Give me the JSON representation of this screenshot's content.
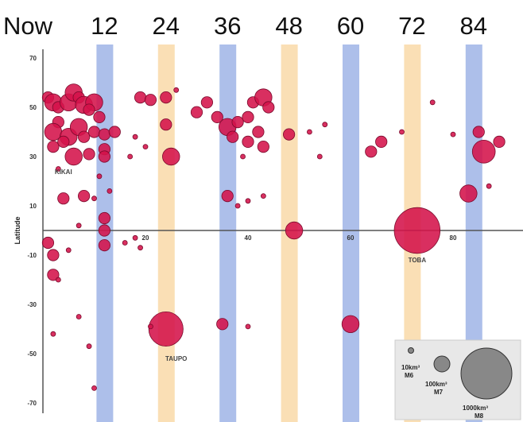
{
  "chart_data": {
    "type": "scatter",
    "title": "",
    "ylabel": "Latitude",
    "xlabel": "",
    "ylim": [
      -70,
      70
    ],
    "y_ticks": [
      "70",
      "50",
      "30",
      "10",
      "-10",
      "-30",
      "-50",
      "-70"
    ],
    "y_tick_values": [
      70,
      50,
      30,
      10,
      -10,
      -30,
      -50,
      -70
    ],
    "x_ticks": [
      "20",
      "40",
      "60",
      "80"
    ],
    "x_tick_values": [
      20,
      40,
      60,
      80
    ],
    "top_labels": [
      "Now",
      "12",
      "24",
      "36",
      "48",
      "60",
      "72",
      "84"
    ],
    "top_label_values": [
      0,
      12,
      24,
      36,
      48,
      60,
      72,
      84
    ],
    "bands": [
      {
        "x": 12,
        "color": "#9fb4e6"
      },
      {
        "x": 24,
        "color": "#f9d9a8"
      },
      {
        "x": 36,
        "color": "#9fb4e6"
      },
      {
        "x": 48,
        "color": "#f9d9a8"
      },
      {
        "x": 60,
        "color": "#9fb4e6"
      },
      {
        "x": 72,
        "color": "#f9d9a8"
      },
      {
        "x": 84,
        "color": "#9fb4e6"
      }
    ],
    "marker_color": "#d4124a",
    "labeled_eruptions": [
      {
        "name": "KIKAI",
        "x": 4,
        "y": 30
      },
      {
        "name": "TAUPO",
        "x": 26,
        "y": -40
      },
      {
        "name": "TOBA",
        "x": 73,
        "y": 0
      }
    ],
    "eruptions": [
      {
        "x": 1,
        "y": 54,
        "size": 2
      },
      {
        "x": 2,
        "y": 52,
        "size": 3
      },
      {
        "x": 3,
        "y": 50,
        "size": 2
      },
      {
        "x": 5,
        "y": 52,
        "size": 3
      },
      {
        "x": 6,
        "y": 56,
        "size": 3
      },
      {
        "x": 7,
        "y": 54,
        "size": 2
      },
      {
        "x": 8,
        "y": 51,
        "size": 3
      },
      {
        "x": 10,
        "y": 52,
        "size": 3
      },
      {
        "x": 9,
        "y": 49,
        "size": 2
      },
      {
        "x": 11,
        "y": 46,
        "size": 2
      },
      {
        "x": 3,
        "y": 44,
        "size": 2
      },
      {
        "x": 2,
        "y": 40,
        "size": 3
      },
      {
        "x": 5,
        "y": 38,
        "size": 3
      },
      {
        "x": 7,
        "y": 42,
        "size": 3
      },
      {
        "x": 8,
        "y": 38,
        "size": 2
      },
      {
        "x": 10,
        "y": 40,
        "size": 2
      },
      {
        "x": 12,
        "y": 39,
        "size": 2
      },
      {
        "x": 14,
        "y": 40,
        "size": 2
      },
      {
        "x": 2,
        "y": 34,
        "size": 2
      },
      {
        "x": 4,
        "y": 36,
        "size": 2
      },
      {
        "x": 6,
        "y": 30,
        "size": 3
      },
      {
        "x": 9,
        "y": 31,
        "size": 2
      },
      {
        "x": 12,
        "y": 33,
        "size": 2
      },
      {
        "x": 12,
        "y": 30,
        "size": 2
      },
      {
        "x": 3,
        "y": 25,
        "size": 1
      },
      {
        "x": 11,
        "y": 22,
        "size": 1
      },
      {
        "x": 8,
        "y": 14,
        "size": 2
      },
      {
        "x": 4,
        "y": 13,
        "size": 2
      },
      {
        "x": 10,
        "y": 13,
        "size": 1
      },
      {
        "x": 13,
        "y": 16,
        "size": 1
      },
      {
        "x": 12,
        "y": 5,
        "size": 2
      },
      {
        "x": 7,
        "y": 2,
        "size": 1
      },
      {
        "x": 12,
        "y": 0,
        "size": 2
      },
      {
        "x": 1,
        "y": -5,
        "size": 2
      },
      {
        "x": 2,
        "y": -10,
        "size": 2
      },
      {
        "x": 5,
        "y": -8,
        "size": 1
      },
      {
        "x": 12,
        "y": -6,
        "size": 2
      },
      {
        "x": 2,
        "y": -18,
        "size": 2
      },
      {
        "x": 3,
        "y": -20,
        "size": 1
      },
      {
        "x": 7,
        "y": -35,
        "size": 1
      },
      {
        "x": 2,
        "y": -42,
        "size": 1
      },
      {
        "x": 9,
        "y": -47,
        "size": 1
      },
      {
        "x": 10,
        "y": -64,
        "size": 1
      },
      {
        "x": 18,
        "y": 38,
        "size": 1
      },
      {
        "x": 19,
        "y": 54,
        "size": 2
      },
      {
        "x": 21,
        "y": 53,
        "size": 2
      },
      {
        "x": 24,
        "y": 54,
        "size": 2
      },
      {
        "x": 26,
        "y": 57,
        "size": 1
      },
      {
        "x": 24,
        "y": 43,
        "size": 2
      },
      {
        "x": 25,
        "y": 30,
        "size": 3
      },
      {
        "x": 17,
        "y": 30,
        "size": 1
      },
      {
        "x": 20,
        "y": 34,
        "size": 1
      },
      {
        "x": 18,
        "y": -3,
        "size": 1
      },
      {
        "x": 19,
        "y": -7,
        "size": 1
      },
      {
        "x": 16,
        "y": -5,
        "size": 1
      },
      {
        "x": 24,
        "y": -40,
        "size": 6
      },
      {
        "x": 21,
        "y": -39,
        "size": 1
      },
      {
        "x": 30,
        "y": 48,
        "size": 2
      },
      {
        "x": 32,
        "y": 52,
        "size": 2
      },
      {
        "x": 34,
        "y": 46,
        "size": 2
      },
      {
        "x": 36,
        "y": 42,
        "size": 3
      },
      {
        "x": 38,
        "y": 44,
        "size": 2
      },
      {
        "x": 37,
        "y": 38,
        "size": 2
      },
      {
        "x": 40,
        "y": 46,
        "size": 2
      },
      {
        "x": 41,
        "y": 52,
        "size": 2
      },
      {
        "x": 43,
        "y": 54,
        "size": 3
      },
      {
        "x": 44,
        "y": 50,
        "size": 2
      },
      {
        "x": 42,
        "y": 40,
        "size": 2
      },
      {
        "x": 40,
        "y": 36,
        "size": 2
      },
      {
        "x": 43,
        "y": 34,
        "size": 2
      },
      {
        "x": 39,
        "y": 30,
        "size": 1
      },
      {
        "x": 36,
        "y": 14,
        "size": 2
      },
      {
        "x": 38,
        "y": 10,
        "size": 1
      },
      {
        "x": 40,
        "y": 12,
        "size": 1
      },
      {
        "x": 43,
        "y": 14,
        "size": 1
      },
      {
        "x": 35,
        "y": -38,
        "size": 2
      },
      {
        "x": 40,
        "y": -39,
        "size": 1
      },
      {
        "x": 48,
        "y": 39,
        "size": 2
      },
      {
        "x": 49,
        "y": 0,
        "size": 3
      },
      {
        "x": 52,
        "y": 40,
        "size": 1
      },
      {
        "x": 55,
        "y": 43,
        "size": 1
      },
      {
        "x": 54,
        "y": 30,
        "size": 1
      },
      {
        "x": 60,
        "y": -38,
        "size": 3
      },
      {
        "x": 64,
        "y": 32,
        "size": 2
      },
      {
        "x": 66,
        "y": 36,
        "size": 2
      },
      {
        "x": 70,
        "y": 40,
        "size": 1
      },
      {
        "x": 73,
        "y": 0,
        "size": 8
      },
      {
        "x": 76,
        "y": 52,
        "size": 1
      },
      {
        "x": 80,
        "y": 39,
        "size": 1
      },
      {
        "x": 83,
        "y": 15,
        "size": 3
      },
      {
        "x": 85,
        "y": 40,
        "size": 2
      },
      {
        "x": 86,
        "y": 32,
        "size": 4
      },
      {
        "x": 89,
        "y": 36,
        "size": 2
      },
      {
        "x": 87,
        "y": 18,
        "size": 1
      }
    ],
    "legend": {
      "entries": [
        {
          "volume": "10km³",
          "magnitude": "M6"
        },
        {
          "volume": "100km³",
          "magnitude": "M7"
        },
        {
          "volume": "1000km³",
          "magnitude": "M8"
        }
      ],
      "placement": "bottom-right"
    }
  }
}
